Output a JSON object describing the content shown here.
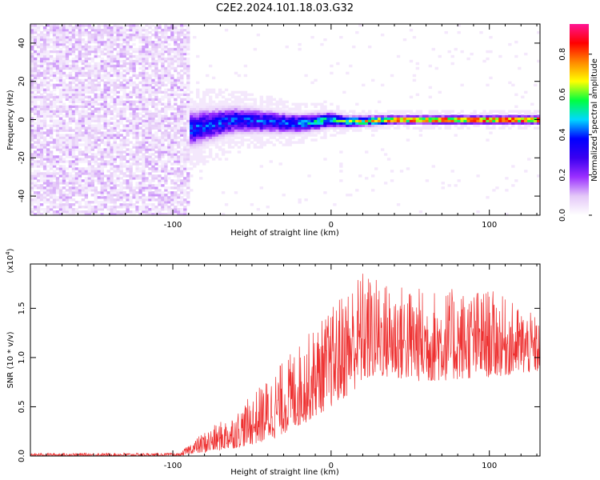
{
  "title": "C2E2.2024.101.18.03.G32",
  "chart_data": [
    {
      "type": "heatmap",
      "xlabel": "Height of straight line (km)",
      "ylabel": "Frequency (Hz)",
      "xlim": [
        -190,
        132
      ],
      "ylim": [
        -50,
        50
      ],
      "xticks": [
        -100,
        0,
        100
      ],
      "yticks": [
        -40,
        -20,
        0,
        20,
        40
      ],
      "colorbar": {
        "label": "Normalized spectral amplitude",
        "range": [
          0.0,
          0.95
        ],
        "ticks": [
          0.0,
          0.2,
          0.4,
          0.6,
          0.8
        ],
        "tick_labels": [
          "0.0",
          "0.2",
          "0.4",
          "0.6",
          "0.8"
        ],
        "colors": [
          "#ffffff",
          "#e4c8f8",
          "#9b30ff",
          "#3a00f0",
          "#0000ff",
          "#00d8ff",
          "#00ff40",
          "#ffff00",
          "#ff8800",
          "#ff0000",
          "#ff1493"
        ]
      },
      "noise_region": {
        "x": [
          -190,
          -90
        ],
        "freq": [
          -50,
          50
        ],
        "amplitude": 0.15
      },
      "signal_band": {
        "x": [
          -90,
          -60,
          -40,
          -20,
          0,
          10,
          40,
          80,
          132
        ],
        "center_freq": [
          -5,
          0,
          -1,
          -2,
          0,
          -1,
          0,
          0,
          0
        ],
        "half_width_hz": [
          10,
          7,
          6,
          5,
          4,
          3,
          2,
          2,
          2
        ],
        "peak_amplitude": [
          0.4,
          0.4,
          0.42,
          0.45,
          0.55,
          0.6,
          0.85,
          0.9,
          0.9
        ]
      }
    },
    {
      "type": "line",
      "xlabel": "Height of straight line (km)",
      "ylabel": "SNR (10 * v/v)",
      "y_multiplier": "(x10",
      "y_multiplier_exp": "4",
      "y_multiplier_close": ")",
      "xlim": [
        -190,
        132
      ],
      "ylim": [
        0,
        1.95
      ],
      "xticks": [
        -100,
        0,
        100
      ],
      "yticks": [
        0.0,
        0.5,
        1.0,
        1.5
      ],
      "ytick_labels": [
        "0.0",
        "0.5",
        "1.0",
        "1.5"
      ],
      "color": "#ee3030",
      "envelope": {
        "x": [
          -190,
          -95,
          -90,
          -80,
          -60,
          -40,
          -20,
          0,
          10,
          20,
          30,
          60,
          100,
          132
        ],
        "lower": [
          0.0,
          0.0,
          0.02,
          0.03,
          0.08,
          0.15,
          0.3,
          0.5,
          0.6,
          0.75,
          0.8,
          0.75,
          0.8,
          0.85
        ],
        "upper": [
          0.03,
          0.03,
          0.12,
          0.25,
          0.45,
          0.8,
          1.15,
          1.5,
          1.75,
          1.9,
          1.8,
          1.7,
          1.7,
          1.4
        ]
      }
    }
  ]
}
